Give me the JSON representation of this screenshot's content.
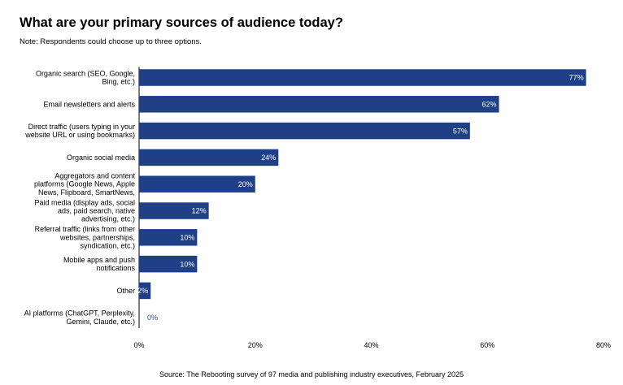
{
  "title": "What are your primary sources of audience today?",
  "subtitle": "Note: Respondents could choose up to three options.",
  "source": "Source: The Rebooting survey of 97 media and publishing industry executives, February 2025",
  "colors": {
    "bar": "#1f4086",
    "label_inside": "#ffffff",
    "label_outside": "#2c4f94",
    "axis": "#000000"
  },
  "chart_data": {
    "type": "bar",
    "orientation": "horizontal",
    "categories": [
      [
        "Organic search (SEO, Google,",
        "Bing, etc.)"
      ],
      [
        "Email newsletters and alerts"
      ],
      [
        "Direct traffic (users typing in your",
        "website URL or using bookmarks)"
      ],
      [
        "Organic social media"
      ],
      [
        "Aggregators and content",
        "platforms (Google News, Apple",
        "News, Flipboard, SmartNews,"
      ],
      [
        "Paid media (display ads, social",
        "ads, paid search, native",
        "advertising, etc.)"
      ],
      [
        "Referral traffic (links from other",
        "websites, partnerships,",
        "syndication, etc.)"
      ],
      [
        "Mobile apps and push",
        "notifications"
      ],
      [
        "Other"
      ],
      [
        "AI platforms (ChatGPT, Perplexity,",
        "Gemini, Claude, etc.)"
      ]
    ],
    "values": [
      77,
      62,
      57,
      24,
      20,
      12,
      10,
      10,
      2,
      0
    ],
    "value_labels": [
      "77%",
      "62%",
      "57%",
      "24%",
      "20%",
      "12%",
      "10%",
      "10%",
      "2%",
      "0%"
    ],
    "xlim": [
      0,
      80
    ],
    "xticks": [
      {
        "value": 0,
        "label": "0%"
      },
      {
        "value": 20,
        "label": "20%"
      },
      {
        "value": 40,
        "label": "40%"
      },
      {
        "value": 60,
        "label": "60%"
      },
      {
        "value": 80,
        "label": "80%"
      }
    ],
    "grid": false,
    "legend": "none"
  }
}
